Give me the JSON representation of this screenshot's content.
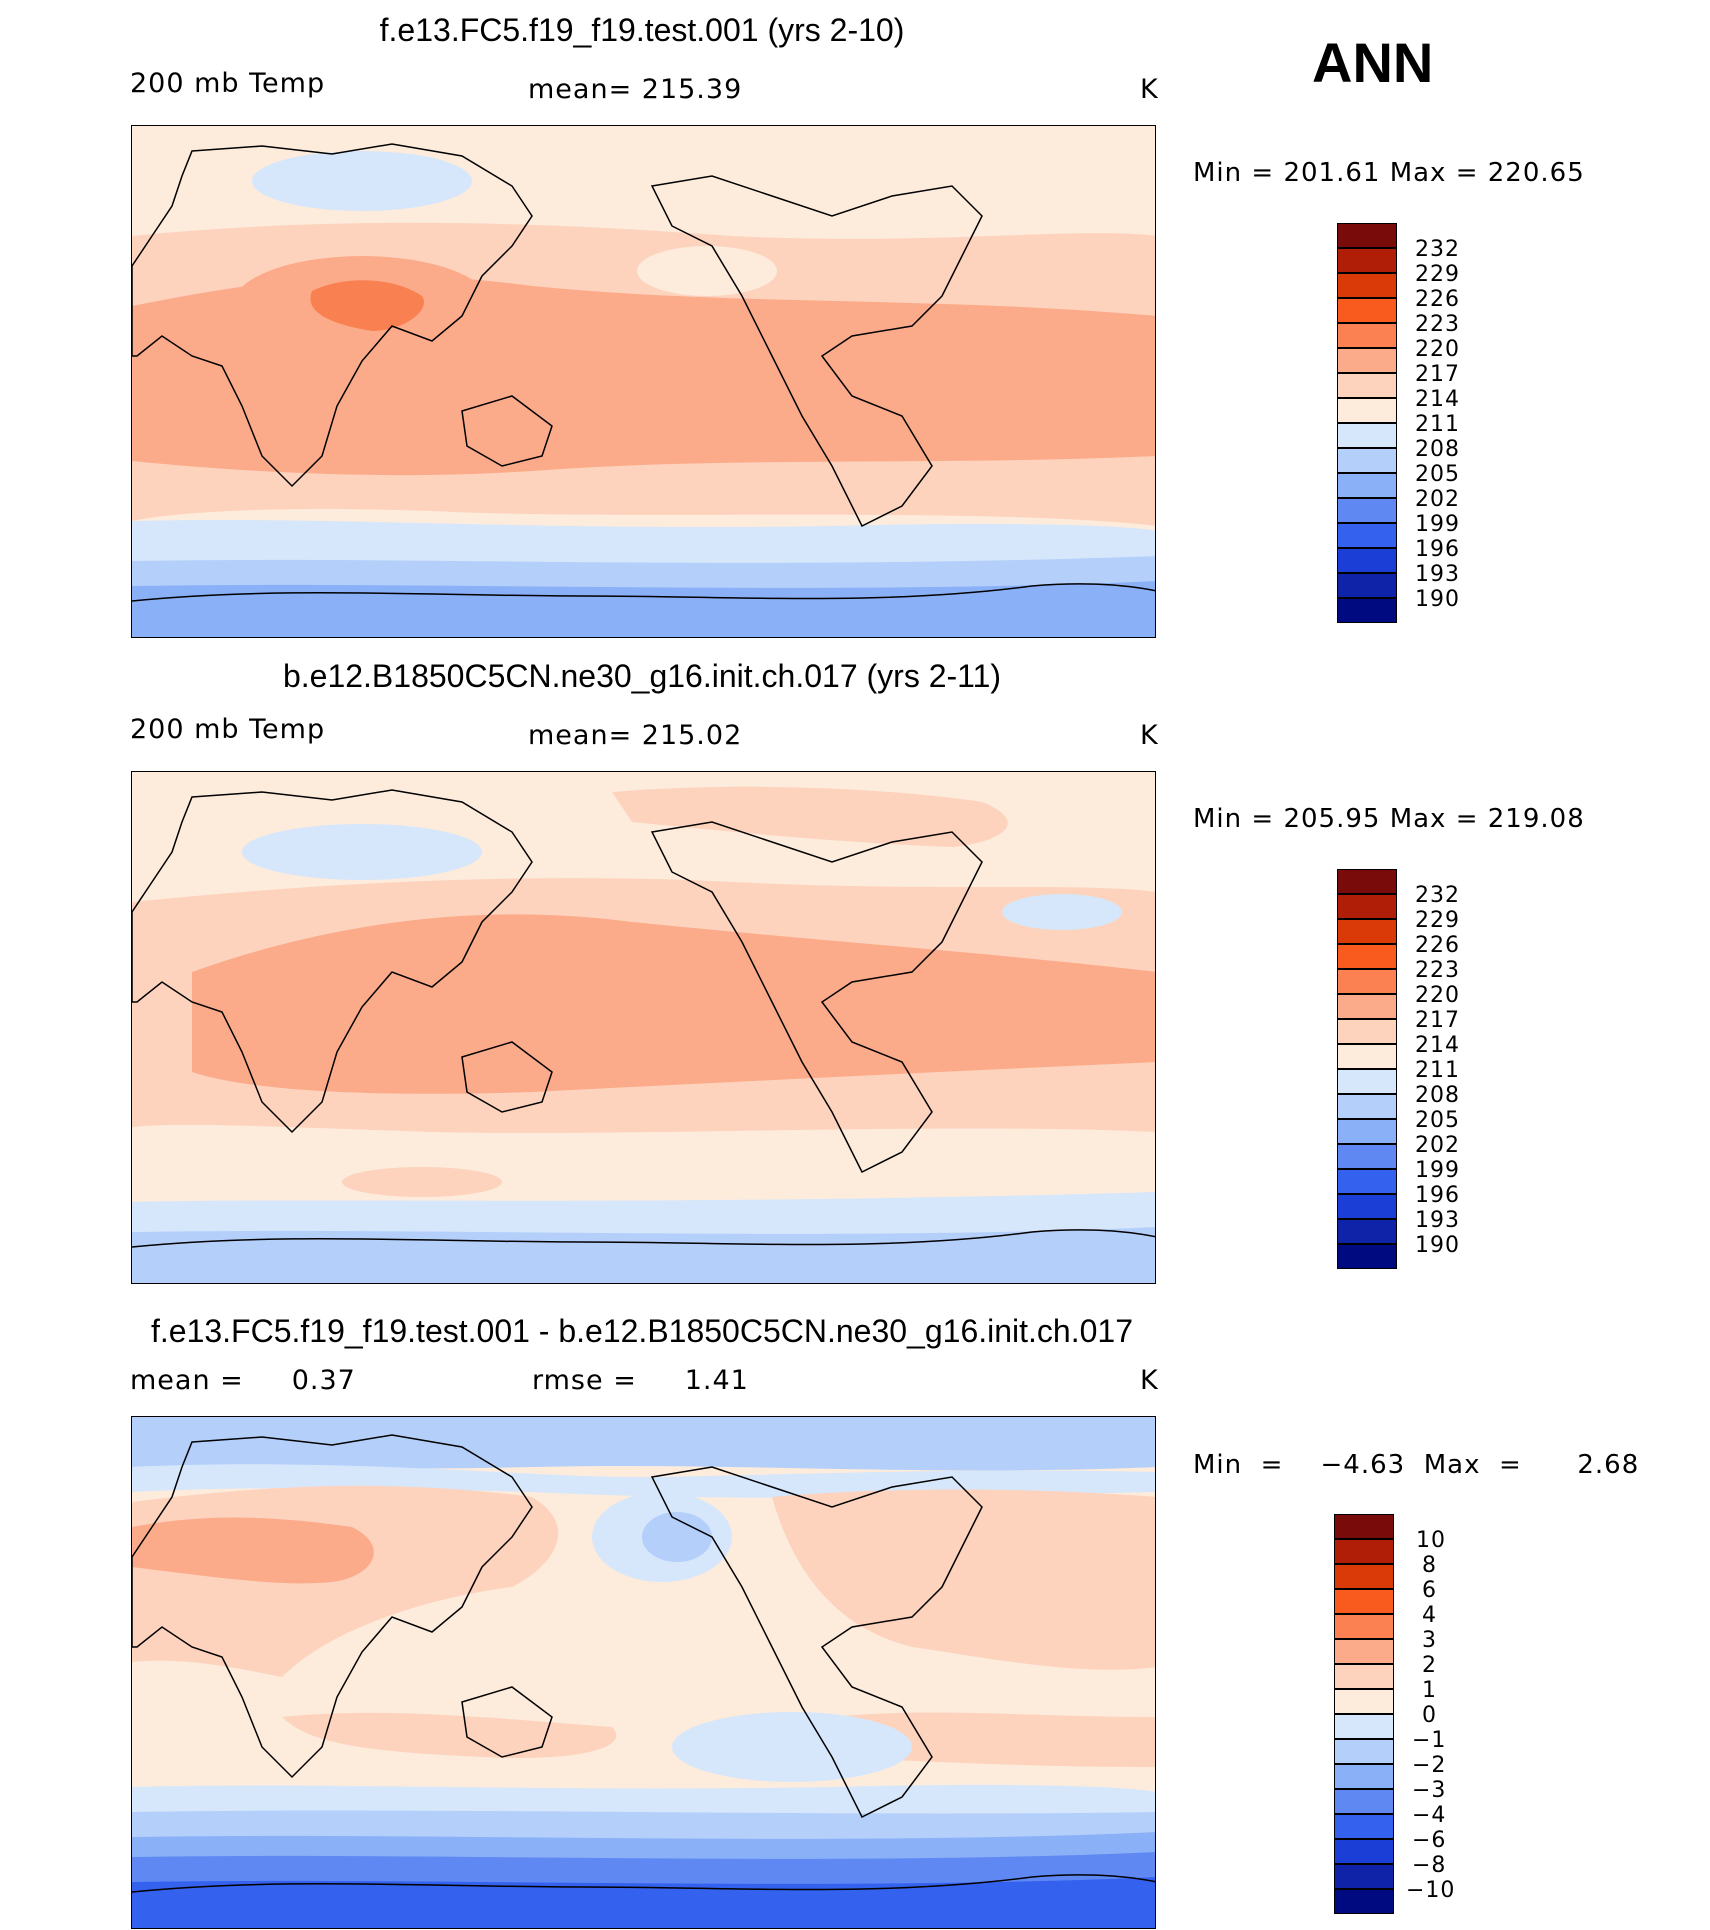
{
  "season": "ANN",
  "panels": [
    {
      "id": "top",
      "title": "f.e13.FC5.f19_f19.test.001 (yrs 2-10)",
      "left": "200 mb Temp",
      "center": "mean= 215.39",
      "unit": "K",
      "minmax": "Min  =  201.61  Max  =  220.65",
      "legend_labels": [
        "232",
        "229",
        "226",
        "223",
        "220",
        "217",
        "214",
        "211",
        "208",
        "205",
        "202",
        "199",
        "196",
        "193",
        "190"
      ]
    },
    {
      "id": "mid",
      "title": "b.e12.B1850C5CN.ne30_g16.init.ch.017 (yrs 2-11)",
      "left": "200 mb Temp",
      "center": "mean= 215.02",
      "unit": "K",
      "minmax": "Min  =  205.95  Max  =  219.08",
      "legend_labels": [
        "232",
        "229",
        "226",
        "223",
        "220",
        "217",
        "214",
        "211",
        "208",
        "205",
        "202",
        "199",
        "196",
        "193",
        "190"
      ]
    },
    {
      "id": "diff",
      "title": "f.e13.FC5.f19_f19.test.001 - b.e12.B1850C5CN.ne30_g16.init.ch.017",
      "left": "mean =     0.37",
      "center": "rmse =     1.41",
      "unit": "K",
      "minmax": "Min  =    −4.63  Max  =      2.68",
      "legend_labels": [
        "10",
        "8",
        "6",
        "4",
        "3",
        "2",
        "1",
        "0",
        "−1",
        "−2",
        "−3",
        "−4",
        "−6",
        "−8",
        "−10"
      ]
    }
  ],
  "colors": {
    "legend_swatches": [
      "#7a0b0b",
      "#b01e08",
      "#d93a08",
      "#f95a1e",
      "#fb8052",
      "#fbab8a",
      "#fdd3be",
      "#fdebdc",
      "#d6e7fb",
      "#b4cffa",
      "#8ab0f7",
      "#5f88f3",
      "#3461ee",
      "#1b3ed6",
      "#0e23a8",
      "#000a80"
    ]
  }
}
